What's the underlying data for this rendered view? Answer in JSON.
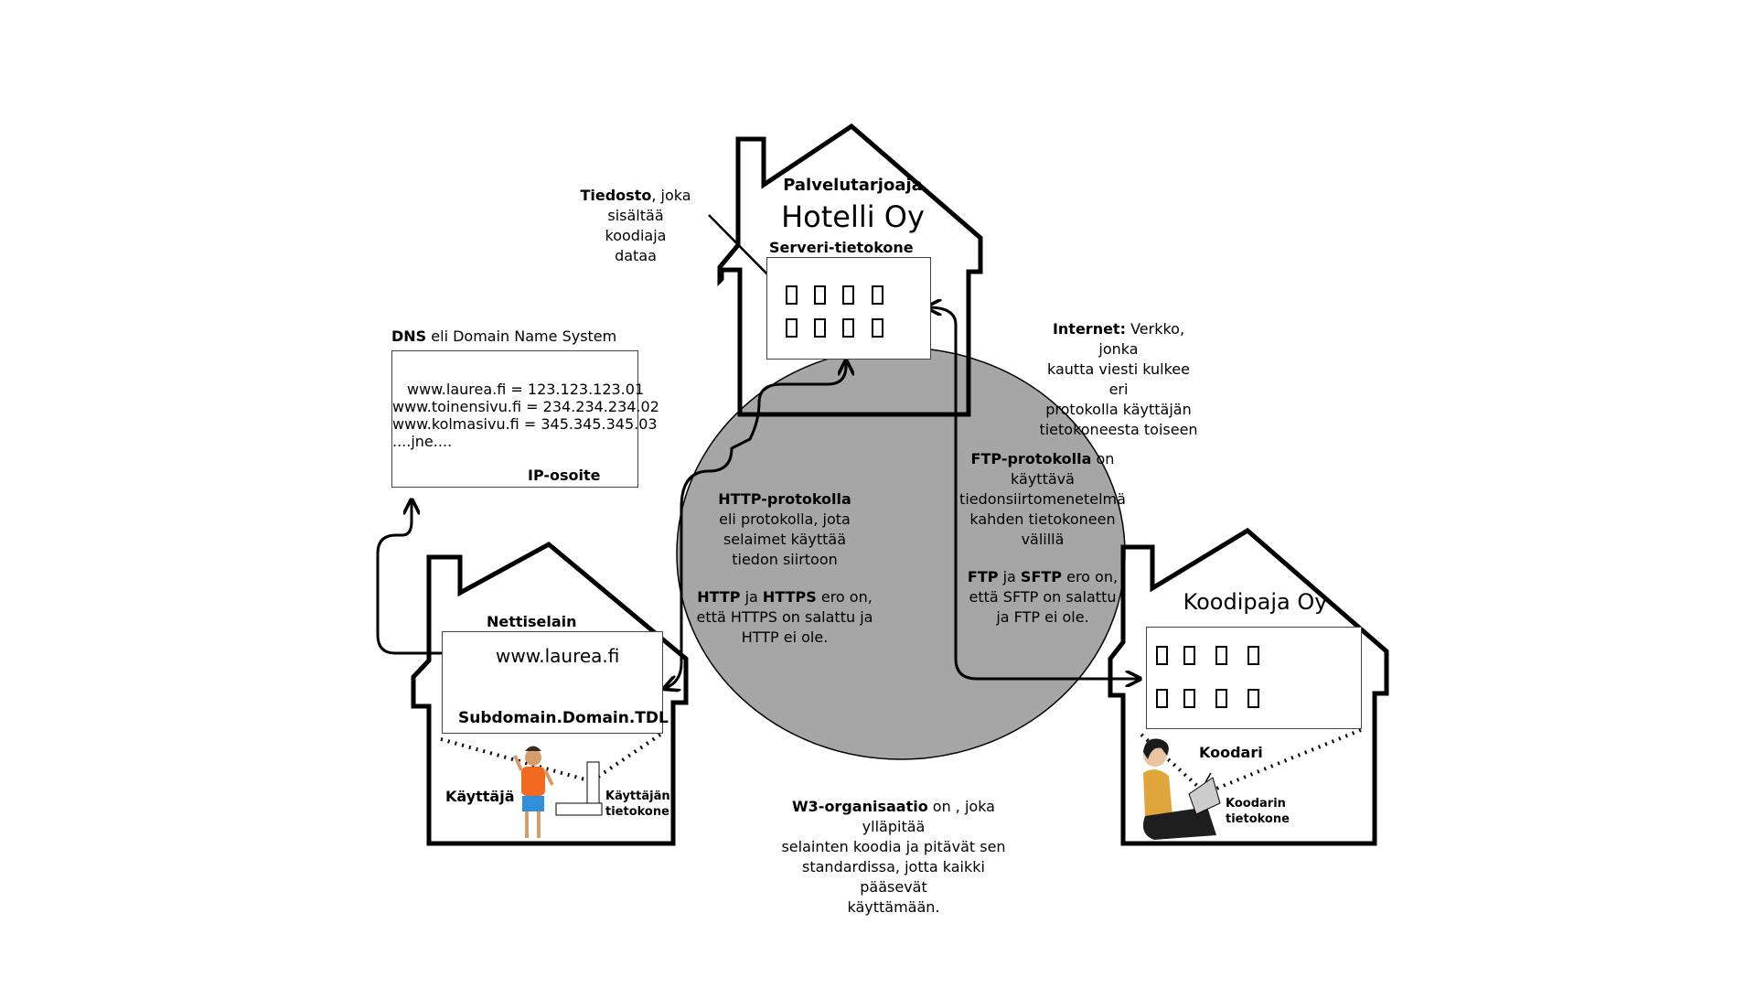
{
  "labels": {
    "provider_label": "Palvelutarjoaja",
    "provider_name": "Hotelli Oy",
    "server_label": "Serveri-tietokone",
    "file_note_bold": "Tiedosto",
    "file_note_rest_1": ", joka",
    "file_note_line2": "sisältää koodiaja",
    "file_note_line3": "dataa",
    "dns_title_bold": "DNS",
    "dns_title_rest": " eli Domain Name System",
    "dns_entries": [
      "www.laurea.fi = 123.123.123.01",
      "www.toinensivu.fi = 234.234.234.02",
      "www.kolmasivu.fi = 345.345.345.03",
      "....jne...."
    ],
    "ip_label": "IP-osoite",
    "internet_bold": "Internet:",
    "internet_line1_rest": " Verkko, jonka",
    "internet_line2": "kautta viesti kulkee eri",
    "internet_line3": "protokolla käyttäjän",
    "internet_line4": "tietokoneesta toiseen",
    "http_bold": "HTTP-protokolla",
    "http_line2": "eli protokolla, jota",
    "http_line3": "selaimet käyttää",
    "http_line4": "tiedon siirtoon",
    "https_bold_1": "HTTP",
    "https_mid": " ja ",
    "https_bold_2": "HTTPS",
    "https_rest": " ero on,",
    "https_line2": "että HTTPS on salattu ja",
    "https_line3": "HTTP ei ole.",
    "ftp_bold": "FTP-protokolla",
    "ftp_line1_rest": " on",
    "ftp_line2": "käyttävä",
    "ftp_line3": "tiedonsiirtomenetelmä",
    "ftp_line4": "kahden tietokoneen",
    "ftp_line5": "välillä",
    "sftp_bold_1": "FTP",
    "sftp_mid": " ja ",
    "sftp_bold_2": "SFTP",
    "sftp_rest": " ero on,",
    "sftp_line2": "että SFTP on salattu",
    "sftp_line3": "ja FTP ei ole.",
    "browser_label": "Nettiselain",
    "browser_url": "www.laurea.fi",
    "browser_structure": "Subdomain.Domain.TDL",
    "user_label": "Käyttäjä",
    "user_computer_1": "Käyttäjän",
    "user_computer_2": "tietokone",
    "coder_company": "Koodipaja Oy",
    "coder_label": "Koodari",
    "coder_computer_1": "Koodarin",
    "coder_computer_2": "tietokone",
    "w3_bold": "W3-organisaatio",
    "w3_line1_rest": "  on , joka ylläpitää",
    "w3_line2": "selainten koodia ja pitävät sen",
    "w3_line3": "standardissa, jotta kaikki pääsevät",
    "w3_line4": "käyttämään."
  },
  "colors": {
    "internet_circle": "#a6a6a6",
    "user_shirt": "#f26a21",
    "user_shorts": "#2f8fd8",
    "coder_shirt": "#e0a63c"
  },
  "icons": [
    "house-icon",
    "arrow-icon",
    "user-figure-icon",
    "coder-figure-icon",
    "laptop-icon",
    "chimney-icon"
  ]
}
